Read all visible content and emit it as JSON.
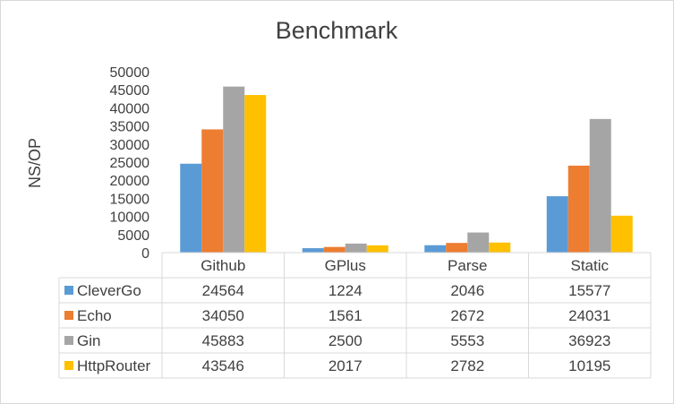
{
  "chart_data": {
    "type": "bar",
    "title": "Benchmark",
    "ylabel": "NS/OP",
    "xlabel": "",
    "ylim": [
      0,
      50000
    ],
    "yticks": [
      0,
      5000,
      10000,
      15000,
      20000,
      25000,
      30000,
      35000,
      40000,
      45000,
      50000
    ],
    "categories": [
      "Github",
      "GPlus",
      "Parse",
      "Static"
    ],
    "series": [
      {
        "name": "CleverGo",
        "color": "#5b9bd5",
        "values": [
          24564,
          1224,
          2046,
          15577
        ]
      },
      {
        "name": "Echo",
        "color": "#ed7d31",
        "values": [
          34050,
          1561,
          2672,
          24031
        ]
      },
      {
        "name": "Gin",
        "color": "#a5a5a5",
        "values": [
          45883,
          2500,
          5553,
          36923
        ]
      },
      {
        "name": "HttpRouter",
        "color": "#ffc000",
        "values": [
          43546,
          2017,
          2782,
          10195
        ]
      }
    ],
    "grid": false,
    "legend": "data table below chart"
  }
}
